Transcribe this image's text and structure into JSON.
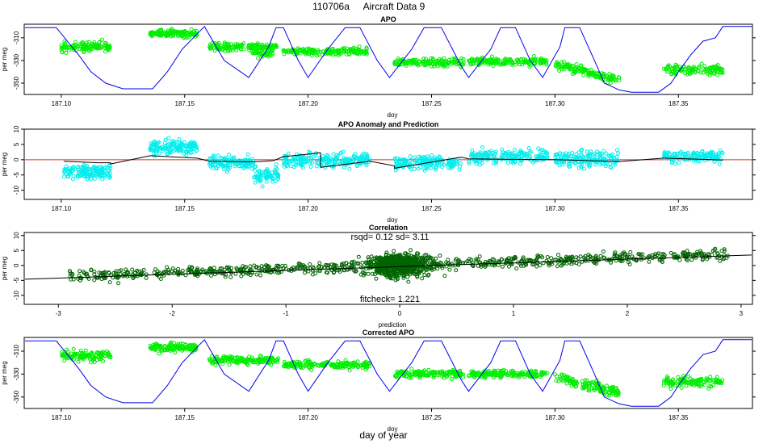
{
  "figure": {
    "title_id": "110706a",
    "title_name": "Aircraft Data 9",
    "xlabel": "day of year"
  },
  "colors": {
    "altitude": "#0000ee",
    "apo": "#00ee00",
    "anomaly": "#00eeee",
    "correlation": "#006400",
    "fit": "#000000",
    "zero": "#cc3333"
  },
  "chart_data": [
    {
      "type": "scatter",
      "title": "APO",
      "xlabel": "doy",
      "ylabel": "per meg",
      "xlim": [
        187.085,
        187.38
      ],
      "ylim": [
        -360,
        -298
      ],
      "xticks": [
        "187.10",
        "187.15",
        "187.20",
        "187.25",
        "187.30",
        "187.35"
      ],
      "yticks": [
        "-350",
        "-330",
        "-310"
      ],
      "segments": [
        {
          "x0": 187.1,
          "x1": 187.12,
          "y": -318,
          "spread": 5,
          "n": 120
        },
        {
          "x0": 187.136,
          "x1": 187.155,
          "y": -306,
          "spread": 4,
          "n": 130
        },
        {
          "x0": 187.16,
          "x1": 187.188,
          "y": -318,
          "spread": 4,
          "n": 150
        },
        {
          "x0": 187.177,
          "x1": 187.186,
          "y": -323,
          "spread": 5,
          "n": 40
        },
        {
          "x0": 187.19,
          "x1": 187.225,
          "y": -322,
          "spread": 4,
          "n": 170
        },
        {
          "x0": 187.235,
          "x1": 187.263,
          "y": -332,
          "spread": 4,
          "n": 150
        },
        {
          "x0": 187.265,
          "x1": 187.297,
          "y": -331,
          "spread": 4,
          "n": 160
        },
        {
          "x0": 187.3,
          "x1": 187.326,
          "y": -333,
          "y_end": -347,
          "spread": 5,
          "n": 140
        },
        {
          "x0": 187.344,
          "x1": 187.368,
          "y": -338,
          "spread": 5,
          "n": 120
        }
      ],
      "altitude_line": {
        "x": [
          187.085,
          187.098,
          187.107,
          187.112,
          187.118,
          187.125,
          187.137,
          187.143,
          187.149,
          187.158,
          187.166,
          187.176,
          187.184,
          187.187,
          187.19,
          187.196,
          187.2,
          187.208,
          187.215,
          187.218,
          187.221,
          187.228,
          187.233,
          187.242,
          187.247,
          187.25,
          187.254,
          187.262,
          187.265,
          187.274,
          187.278,
          187.281,
          187.284,
          187.29,
          187.295,
          187.302,
          187.304,
          187.31,
          187.316,
          187.32,
          187.326,
          187.331,
          187.342,
          187.347,
          187.35,
          187.355,
          187.36,
          187.365,
          187.368,
          187.38
        ],
        "y": [
          -301,
          -301,
          -325,
          -340,
          -350,
          -355,
          -355,
          -340,
          -320,
          -300,
          -330,
          -345,
          -318,
          -301,
          -301,
          -330,
          -345,
          -320,
          -301,
          -301,
          -301,
          -330,
          -345,
          -320,
          -301,
          -301,
          -301,
          -335,
          -345,
          -320,
          -301,
          -301,
          -301,
          -330,
          -345,
          -318,
          -301,
          -301,
          -330,
          -350,
          -356,
          -358,
          -358,
          -350,
          -340,
          -325,
          -313,
          -310,
          -300,
          -300
        ]
      }
    },
    {
      "type": "scatter",
      "title": "APO Anomaly and Prediction",
      "xlabel": "doy",
      "ylabel": "per meg",
      "xlim": [
        187.085,
        187.38
      ],
      "ylim": [
        -13,
        10
      ],
      "xticks": [
        "187.10",
        "187.15",
        "187.20",
        "187.25",
        "187.30",
        "187.35"
      ],
      "yticks": [
        "-10",
        "-5",
        "0",
        "5",
        "10"
      ],
      "segments": [
        {
          "x0": 187.101,
          "x1": 187.12,
          "y": -4,
          "spread": 2.5,
          "n": 140
        },
        {
          "x0": 187.136,
          "x1": 187.155,
          "y": 4,
          "spread": 2.5,
          "n": 140
        },
        {
          "x0": 187.16,
          "x1": 187.178,
          "y": -1,
          "spread": 2.5,
          "n": 120
        },
        {
          "x0": 187.178,
          "x1": 187.188,
          "y": -5,
          "spread": 3,
          "n": 70
        },
        {
          "x0": 187.19,
          "x1": 187.225,
          "y": 0,
          "spread": 3,
          "n": 200
        },
        {
          "x0": 187.235,
          "x1": 187.262,
          "y": -1,
          "spread": 2.5,
          "n": 160
        },
        {
          "x0": 187.265,
          "x1": 187.297,
          "y": 1,
          "spread": 2.5,
          "n": 180
        },
        {
          "x0": 187.3,
          "x1": 187.326,
          "y": 0,
          "spread": 3,
          "n": 150
        },
        {
          "x0": 187.344,
          "x1": 187.368,
          "y": 1,
          "spread": 2.5,
          "n": 130
        }
      ],
      "prediction_line": {
        "x": [
          187.101,
          187.115,
          187.12,
          187.12,
          187.136,
          187.136,
          187.155,
          187.16,
          187.178,
          187.178,
          187.186,
          187.19,
          187.2,
          187.205,
          187.2051,
          187.225,
          187.235,
          187.235,
          187.262,
          187.265,
          187.297,
          187.3,
          187.326,
          187.344,
          187.368
        ],
        "y": [
          -0.5,
          -1,
          -1,
          -1.4,
          1.3,
          1.3,
          0.5,
          -0.5,
          -0.7,
          -0.7,
          -0.3,
          1,
          1.8,
          2.3,
          -2.5,
          -0.5,
          -2,
          -2.8,
          0.8,
          0.3,
          0,
          0,
          -0.6,
          0.5,
          -0.1
        ]
      },
      "zero_line": {
        "y": 0
      }
    },
    {
      "type": "scatter",
      "title": "Correlation",
      "xlabel": "prediction",
      "ylabel": "per meg",
      "xlim": [
        -3.3,
        3.1
      ],
      "ylim": [
        -13,
        11
      ],
      "xticks": [
        "-3",
        "-2",
        "-1",
        "0",
        "1",
        "2",
        "3"
      ],
      "yticks": [
        "-10",
        "-5",
        "0",
        "5",
        "10"
      ],
      "annotations": [
        "rsqd= 0.12 sd= 3.11",
        "fitcheck= 1.221"
      ],
      "fit_line": {
        "x": [
          -3.3,
          3.1
        ],
        "y": [
          -4.6,
          3.5
        ]
      }
    },
    {
      "type": "scatter",
      "title": "Corrected APO",
      "xlabel": "doy",
      "ylabel": "per meg",
      "xlim": [
        187.085,
        187.38
      ],
      "ylim": [
        -360,
        -298
      ],
      "xticks": [
        "187.10",
        "187.15",
        "187.20",
        "187.25",
        "187.30",
        "187.35"
      ],
      "yticks": [
        "-350",
        "-330",
        "-310"
      ],
      "segments": [
        {
          "x0": 187.1,
          "x1": 187.12,
          "y": -314,
          "spread": 5,
          "n": 120
        },
        {
          "x0": 187.136,
          "x1": 187.155,
          "y": -307,
          "spread": 4,
          "n": 130
        },
        {
          "x0": 187.16,
          "x1": 187.188,
          "y": -318,
          "spread": 4,
          "n": 150
        },
        {
          "x0": 187.19,
          "x1": 187.225,
          "y": -322,
          "spread": 4,
          "n": 170
        },
        {
          "x0": 187.235,
          "x1": 187.263,
          "y": -330,
          "spread": 4,
          "n": 150
        },
        {
          "x0": 187.265,
          "x1": 187.297,
          "y": -330,
          "spread": 4,
          "n": 160
        },
        {
          "x0": 187.3,
          "x1": 187.326,
          "y": -333,
          "y_end": -346,
          "spread": 5,
          "n": 140
        },
        {
          "x0": 187.344,
          "x1": 187.368,
          "y": -337,
          "spread": 5,
          "n": 120
        }
      ],
      "altitude_line": {
        "x": [
          187.085,
          187.098,
          187.107,
          187.112,
          187.118,
          187.125,
          187.137,
          187.143,
          187.149,
          187.158,
          187.166,
          187.176,
          187.184,
          187.187,
          187.19,
          187.196,
          187.2,
          187.208,
          187.215,
          187.218,
          187.221,
          187.228,
          187.233,
          187.242,
          187.247,
          187.25,
          187.254,
          187.262,
          187.265,
          187.274,
          187.278,
          187.281,
          187.284,
          187.29,
          187.295,
          187.302,
          187.304,
          187.31,
          187.316,
          187.32,
          187.326,
          187.331,
          187.342,
          187.347,
          187.35,
          187.355,
          187.36,
          187.365,
          187.368,
          187.38
        ],
        "y": [
          -301,
          -301,
          -325,
          -340,
          -350,
          -355,
          -355,
          -340,
          -320,
          -300,
          -330,
          -345,
          -318,
          -301,
          -301,
          -330,
          -345,
          -320,
          -301,
          -301,
          -301,
          -330,
          -345,
          -320,
          -301,
          -301,
          -301,
          -335,
          -345,
          -320,
          -301,
          -301,
          -301,
          -330,
          -345,
          -318,
          -301,
          -301,
          -330,
          -350,
          -356,
          -358,
          -358,
          -350,
          -340,
          -325,
          -313,
          -310,
          -300,
          -300
        ]
      }
    }
  ]
}
